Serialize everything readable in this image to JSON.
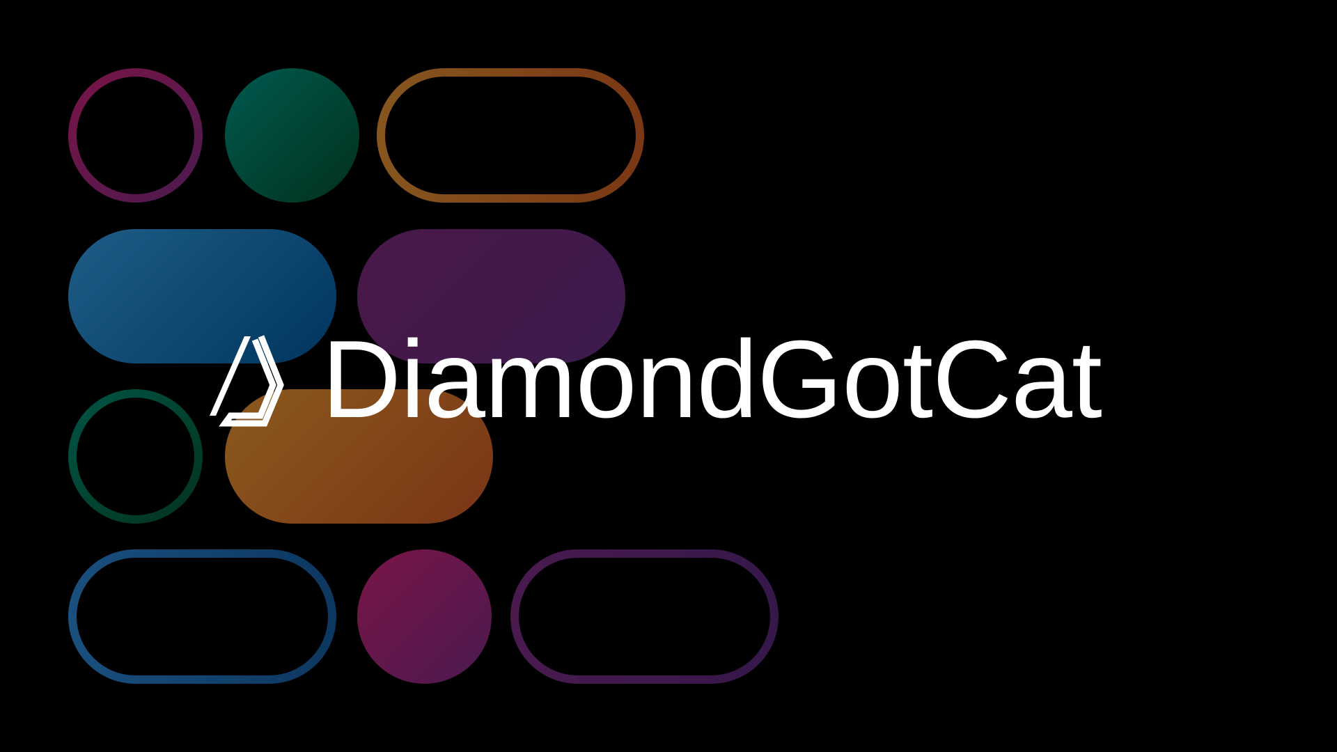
{
  "brand": {
    "name": "DiamondGotCat",
    "logo_icon": "diamond-outline-icon",
    "text_color": "#ffffff"
  },
  "background_color": "#000000",
  "decor_palette": {
    "magenta": [
      "#7a1446",
      "#4a1a4f"
    ],
    "teal": [
      "#005a50",
      "#02301b"
    ],
    "orange": [
      "#86561e",
      "#7a3714"
    ],
    "blue": [
      "#1f5d86",
      "#00355e"
    ],
    "purple": [
      "#4a1848",
      "#3b1a4d"
    ]
  }
}
